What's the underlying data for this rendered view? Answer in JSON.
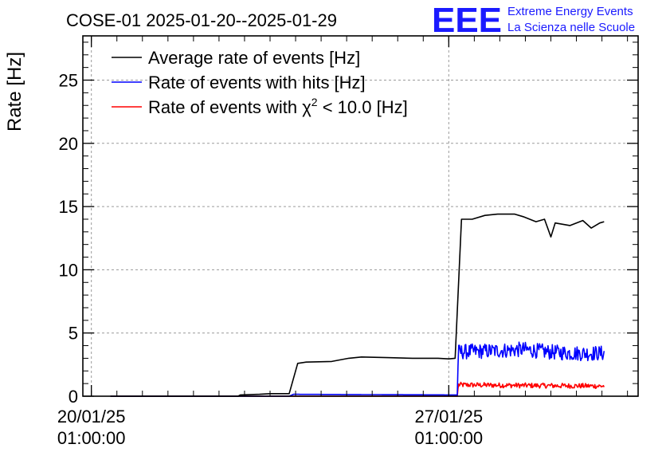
{
  "chart_data": {
    "type": "line",
    "title": "COSE-01 2025-01-20--2025-01-29",
    "ylabel": "Rate [Hz]",
    "xlabel": "",
    "ylim": [
      0,
      28.5
    ],
    "yticks": [
      0,
      5,
      10,
      15,
      20,
      25
    ],
    "xlim": [
      "2025-01-19 21:00",
      "2025-01-30 18:00"
    ],
    "x_tick_labels": [
      {
        "x": "2025-01-20 01:00",
        "date": "20/01/25",
        "time": "01:00:00"
      },
      {
        "x": "2025-01-27 01:00",
        "date": "27/01/25",
        "time": "01:00:00"
      }
    ],
    "grid": true,
    "legend_position": "top-left",
    "series": [
      {
        "name": "Average rate of events [Hz]",
        "color": "#000000",
        "points": [
          [
            "2025-01-20 10:00",
            0
          ],
          [
            "2025-01-22 22:00",
            0
          ],
          [
            "2025-01-22 23:00",
            0.1
          ],
          [
            "2025-01-23 08:00",
            0.15
          ],
          [
            "2025-01-23 13:00",
            0.2
          ],
          [
            "2025-01-23 22:00",
            0.2
          ],
          [
            "2025-01-24 02:00",
            2.6
          ],
          [
            "2025-01-24 06:00",
            2.7
          ],
          [
            "2025-01-24 18:00",
            2.75
          ],
          [
            "2025-01-25 02:00",
            3.0
          ],
          [
            "2025-01-25 08:00",
            3.1
          ],
          [
            "2025-01-25 20:00",
            3.05
          ],
          [
            "2025-01-26 08:00",
            3.0
          ],
          [
            "2025-01-26 20:00",
            3.0
          ],
          [
            "2025-01-27 01:00",
            2.95
          ],
          [
            "2025-01-27 04:00",
            3.0
          ],
          [
            "2025-01-27 07:00",
            14.0
          ],
          [
            "2025-01-27 12:00",
            14.0
          ],
          [
            "2025-01-27 18:00",
            14.3
          ],
          [
            "2025-01-28 00:00",
            14.4
          ],
          [
            "2025-01-28 08:00",
            14.4
          ],
          [
            "2025-01-28 12:00",
            14.2
          ],
          [
            "2025-01-28 18:00",
            13.8
          ],
          [
            "2025-01-28 22:00",
            14.0
          ],
          [
            "2025-01-29 01:00",
            12.6
          ],
          [
            "2025-01-29 03:00",
            13.7
          ],
          [
            "2025-01-29 10:00",
            13.5
          ],
          [
            "2025-01-29 16:00",
            13.9
          ],
          [
            "2025-01-29 20:00",
            13.3
          ],
          [
            "2025-01-30 00:00",
            13.7
          ],
          [
            "2025-01-30 02:00",
            13.8
          ]
        ]
      },
      {
        "name": "Rate of events with hits [Hz]",
        "color": "#0000ff",
        "points": [
          [
            "2025-01-20 10:00",
            0
          ],
          [
            "2025-01-23 22:00",
            0
          ],
          [
            "2025-01-24 00:00",
            0.15
          ],
          [
            "2025-01-27 05:00",
            0.1
          ],
          [
            "2025-01-27 05:30",
            3.5
          ],
          [
            "2025-01-28 00:00",
            3.6
          ],
          [
            "2025-01-28 12:00",
            3.7
          ],
          [
            "2025-01-29 00:00",
            3.5
          ],
          [
            "2025-01-29 12:00",
            3.4
          ],
          [
            "2025-01-30 02:00",
            3.4
          ]
        ],
        "noise_amplitude": 0.6
      },
      {
        "name": "Rate of events with χ² < 10.0 [Hz]",
        "color": "#ff0000",
        "points": [
          [
            "2025-01-20 10:00",
            0
          ],
          [
            "2025-01-27 05:00",
            0
          ],
          [
            "2025-01-27 05:30",
            0.9
          ],
          [
            "2025-01-28 12:00",
            0.85
          ],
          [
            "2025-01-30 02:00",
            0.8
          ]
        ],
        "noise_amplitude": 0.2
      }
    ]
  },
  "legend": [
    {
      "label": "Average rate of events [Hz]",
      "color": "#000000"
    },
    {
      "label": "Rate of events with hits [Hz]",
      "color": "#0000ff"
    },
    {
      "label_prefix": "Rate of events with ",
      "label_symbol": "χ",
      "label_sup": "2",
      "label_suffix": " < 10.0 [Hz]",
      "color": "#ff0000"
    }
  ],
  "logo": {
    "mark": "EEE",
    "line1": "Extreme Energy Events",
    "line2": "La Scienza nelle Scuole",
    "color": "#1a1aff"
  }
}
